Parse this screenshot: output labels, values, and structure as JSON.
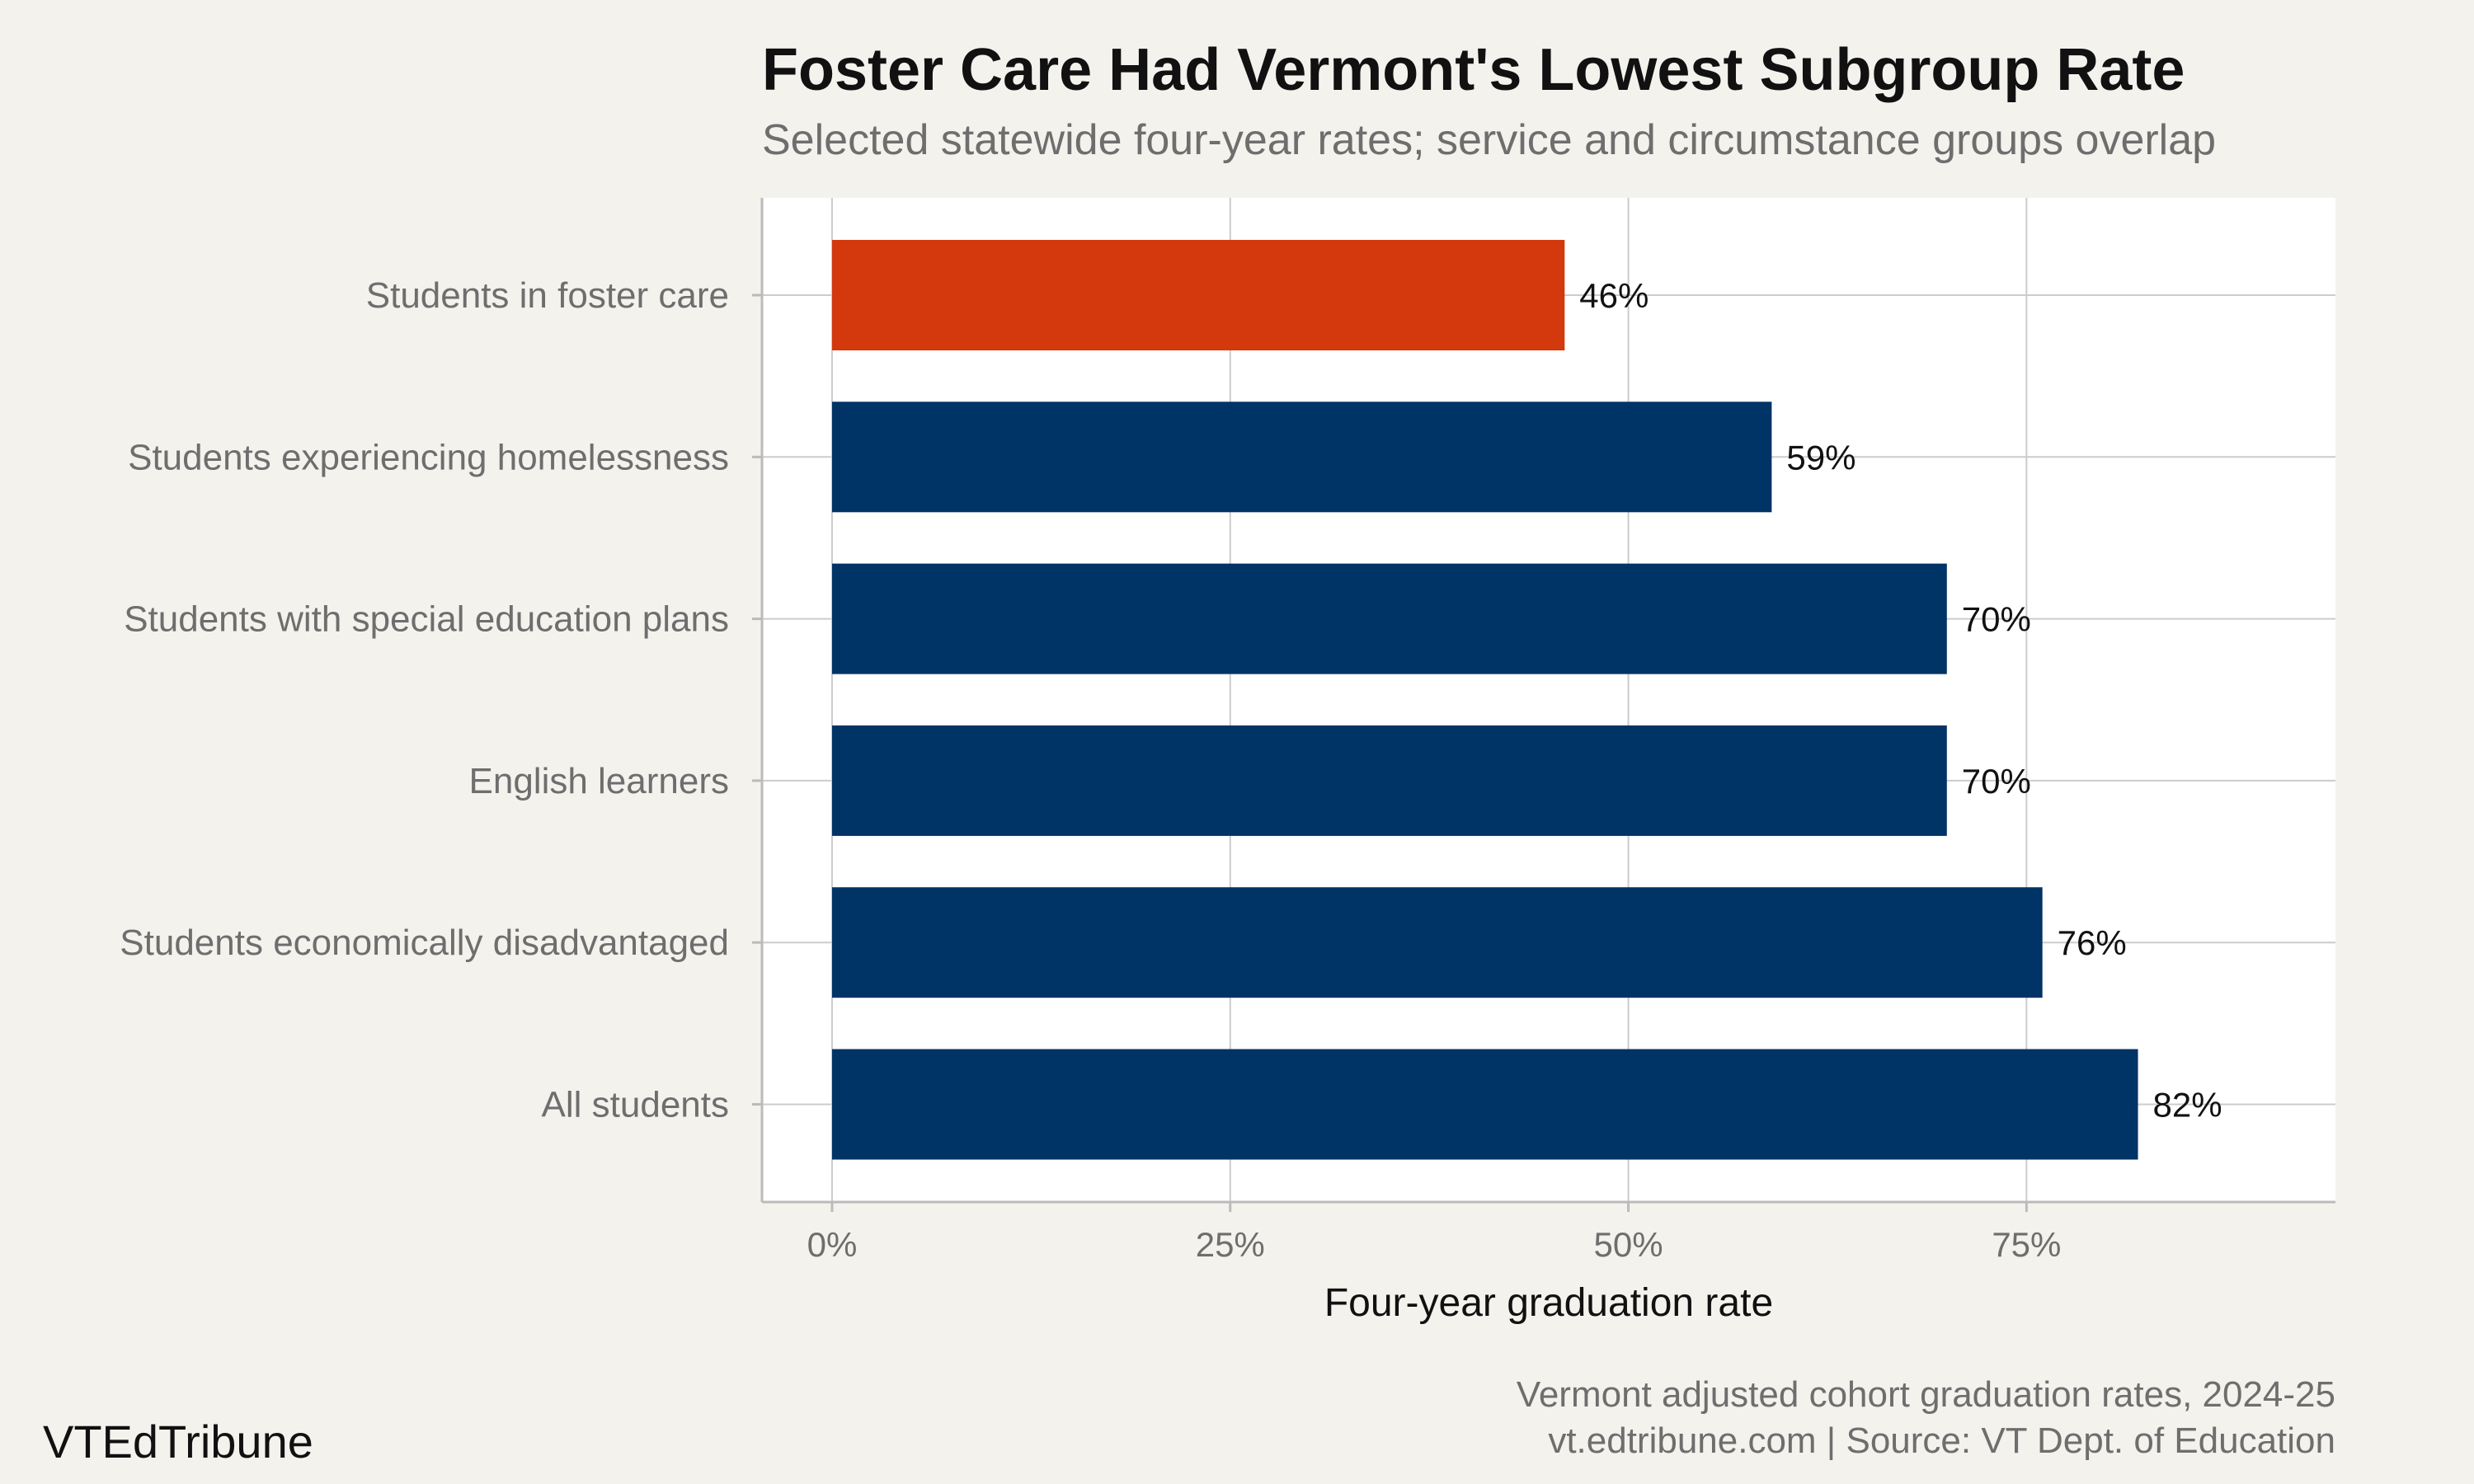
{
  "header": {
    "title": "Foster Care Had Vermont's Lowest Subgroup Rate",
    "subtitle": "Selected statewide four-year rates; service and circumstance groups overlap"
  },
  "footer": {
    "brand": "VTEdTribune",
    "caption_line1": "Vermont adjusted cohort graduation rates, 2024-25",
    "caption_line2": "vt.edtribune.com | Source: VT Dept. of Education"
  },
  "chart_data": {
    "type": "bar",
    "orientation": "horizontal",
    "title": "Foster Care Had Vermont's Lowest Subgroup Rate",
    "subtitle": "Selected statewide four-year rates; service and circumstance groups overlap",
    "xlabel": "Four-year graduation rate",
    "ylabel": "",
    "categories": [
      "Students in foster care",
      "Students experiencing homelessness",
      "Students with special education plans",
      "English learners",
      "Students economically disadvantaged",
      "All students"
    ],
    "values": [
      46,
      59,
      70,
      70,
      76,
      82
    ],
    "value_labels": [
      "46%",
      "59%",
      "70%",
      "70%",
      "76%",
      "82%"
    ],
    "xlim": [
      -4.4,
      94.4
    ],
    "x_ticks": [
      0,
      25,
      50,
      75
    ],
    "x_tick_labels": [
      "0%",
      "25%",
      "50%",
      "75%"
    ],
    "grid": true,
    "legend": "none",
    "colors": {
      "highlight": "#d4380d",
      "bar": "#003366",
      "panel": "#ffffff",
      "background": "#f4f2ed",
      "grid": "#cccccc"
    },
    "highlight_category": "Students in foster care"
  }
}
